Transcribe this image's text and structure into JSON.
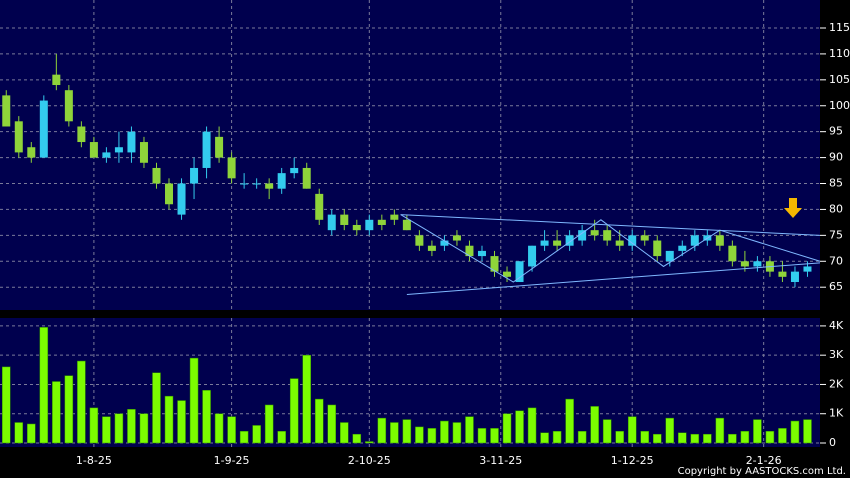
{
  "chart_data": [
    {
      "type": "candlestick",
      "x": [
        0,
        2,
        4,
        6,
        8,
        10,
        12,
        14,
        16,
        18,
        20,
        22,
        24,
        26,
        28,
        30,
        32,
        34,
        36,
        38,
        40,
        42,
        44,
        46,
        48,
        50,
        52,
        54,
        56,
        58,
        60,
        62,
        64,
        66,
        68,
        70,
        72,
        74,
        76,
        78,
        80,
        82,
        84,
        86,
        88,
        90,
        92,
        94,
        96,
        98,
        100,
        102,
        104,
        106,
        108,
        110,
        112,
        114,
        116,
        118,
        120,
        122,
        124,
        126,
        128
      ],
      "open": [
        102,
        97,
        92,
        90,
        106,
        103,
        96,
        93,
        90,
        91,
        91,
        93,
        88,
        85,
        79,
        85,
        88,
        94,
        90,
        85,
        85,
        85,
        84,
        87,
        88,
        83,
        76,
        79,
        77,
        76,
        78,
        79,
        78,
        75,
        73,
        73,
        75,
        73,
        71,
        71,
        68,
        66,
        69,
        73,
        74,
        73,
        74,
        76,
        76,
        74,
        73,
        75,
        74,
        70,
        72,
        73,
        74,
        75,
        73,
        70,
        69,
        70,
        68,
        66,
        68
      ],
      "high": [
        103,
        98,
        93,
        102,
        110,
        104,
        97,
        94,
        92,
        95,
        96,
        94,
        89,
        86,
        86,
        90,
        96,
        96,
        91,
        87,
        86,
        86,
        88,
        90,
        89,
        84,
        80,
        80,
        78,
        79,
        79,
        80,
        79,
        76,
        74,
        75,
        76,
        74,
        73,
        72,
        69,
        70,
        73,
        76,
        76,
        76,
        77,
        78,
        77,
        76,
        76,
        76,
        75,
        72,
        74,
        76,
        76,
        76,
        74,
        72,
        71,
        71,
        70,
        69,
        70
      ],
      "low": [
        96,
        90,
        89,
        90,
        103,
        96,
        92,
        90,
        89,
        89,
        89,
        88,
        84,
        80,
        78,
        82,
        86,
        89,
        85,
        84,
        84,
        82,
        83,
        86,
        84,
        77,
        75,
        76,
        75,
        75,
        76,
        77,
        76,
        72,
        71,
        72,
        73,
        70,
        70,
        67,
        66,
        66,
        68,
        72,
        72,
        72,
        73,
        74,
        73,
        72,
        72,
        73,
        70,
        69,
        71,
        72,
        73,
        72,
        69,
        68,
        68,
        67,
        66,
        65,
        67
      ],
      "close": [
        96,
        91,
        90,
        101,
        104,
        97,
        93,
        90,
        91,
        92,
        95,
        89,
        85,
        81,
        85,
        88,
        95,
        90,
        86,
        85,
        85,
        84,
        87,
        88,
        84,
        78,
        79,
        77,
        76,
        78,
        77,
        78,
        76,
        73,
        72,
        74,
        74,
        71,
        72,
        68,
        67,
        70,
        73,
        74,
        73,
        75,
        76,
        75,
        74,
        73,
        75,
        74,
        71,
        72,
        73,
        75,
        75,
        73,
        70,
        69,
        70,
        68,
        67,
        68,
        69
      ],
      "up_color": "#33ccee",
      "down_color": "#8fd43a",
      "xlim": [
        -1,
        130
      ],
      "ylim": [
        60.6,
        120.4
      ],
      "yticks": [
        65,
        70,
        75,
        80,
        85,
        90,
        95,
        100,
        105,
        110,
        115
      ],
      "trendlines": [
        {
          "x": [
            63,
            130
          ],
          "y": [
            79,
            75
          ]
        },
        {
          "x": [
            64,
            130
          ],
          "y": [
            63.6,
            69.7
          ]
        },
        {
          "x": [
            63,
            81,
            95,
            105,
            114,
            130
          ],
          "y": [
            79,
            66,
            78,
            69,
            76,
            70
          ]
        }
      ],
      "grid": true
    },
    {
      "type": "bar",
      "values": [
        2600,
        700,
        650,
        3950,
        2100,
        2300,
        2800,
        1200,
        900,
        1000,
        1150,
        1000,
        2400,
        1600,
        1450,
        2900,
        1800,
        1000,
        900,
        400,
        600,
        1300,
        400,
        2200,
        3000,
        1500,
        1300,
        700,
        300,
        50,
        850,
        700,
        800,
        550,
        500,
        750,
        700,
        900,
        500,
        500,
        1000,
        1100,
        1200,
        350,
        400,
        1500,
        400,
        1250,
        800,
        400,
        900,
        400,
        300,
        850,
        350,
        300,
        300,
        850,
        300,
        400,
        800,
        400,
        500,
        750,
        800
      ],
      "color": "#7cfc00",
      "ylim": [
        0,
        4270
      ],
      "yticks": [
        0,
        {
          "value": 1000,
          "label": "1K"
        },
        {
          "value": 2000,
          "label": "2K"
        },
        {
          "value": 3000,
          "label": "3K"
        },
        {
          "value": 4000,
          "label": "4K"
        }
      ],
      "xticks": [
        {
          "value": 14,
          "label": "1-8-25"
        },
        {
          "value": 36,
          "label": "1-9-25"
        },
        {
          "value": 58,
          "label": "2-10-25"
        },
        {
          "value": 79,
          "label": "3-11-25"
        },
        {
          "value": 100,
          "label": "1-12-25"
        },
        {
          "value": 121,
          "label": "2-1-26"
        }
      ],
      "grid": true
    }
  ],
  "copyright": "Copyright by AASTOCKS.com Ltd."
}
